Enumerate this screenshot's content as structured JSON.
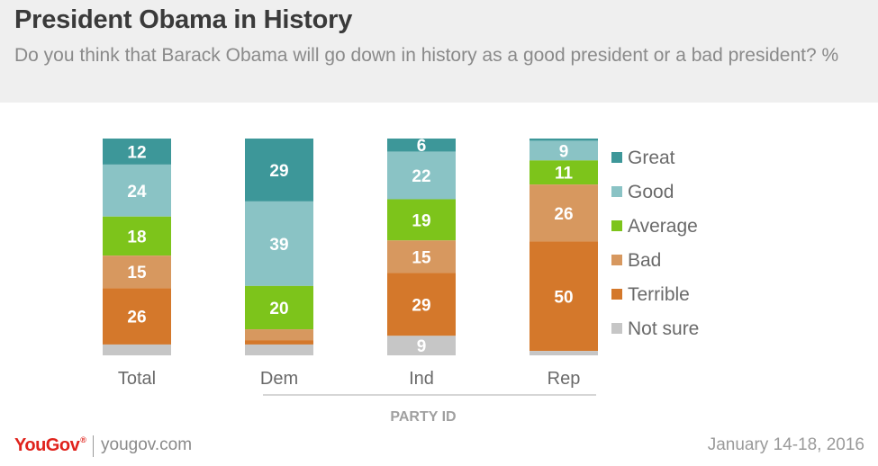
{
  "header": {
    "title": "President Obama in History",
    "subtitle": "Do you think that Barack Obama will go down in history as a good president or a bad president? %"
  },
  "footer": {
    "brand": "YouGov",
    "brand_mark": "®",
    "url": "yougov.com",
    "date": "January 14-18, 2016"
  },
  "chart_data": {
    "type": "bar",
    "stacked": true,
    "orientation": "vertical",
    "categories": [
      "Total",
      "Dem",
      "Ind",
      "Rep"
    ],
    "group_label": "PARTY ID",
    "grouped_categories": [
      "Dem",
      "Ind",
      "Rep"
    ],
    "legend_position": "right",
    "grid": false,
    "series": [
      {
        "name": "Great",
        "color": "#3d9799",
        "values": [
          12,
          29,
          6,
          1
        ]
      },
      {
        "name": "Good",
        "color": "#8ac3c5",
        "values": [
          24,
          39,
          22,
          9
        ]
      },
      {
        "name": "Average",
        "color": "#7dc41b",
        "values": [
          18,
          20,
          19,
          11
        ]
      },
      {
        "name": "Bad",
        "color": "#d7985f",
        "values": [
          15,
          5,
          15,
          26
        ]
      },
      {
        "name": "Terrible",
        "color": "#d4782b",
        "values": [
          26,
          2,
          29,
          50
        ]
      },
      {
        "name": "Not sure",
        "color": "#c6c6c6",
        "values": [
          5,
          5,
          9,
          2
        ]
      }
    ],
    "label_threshold": 6
  }
}
